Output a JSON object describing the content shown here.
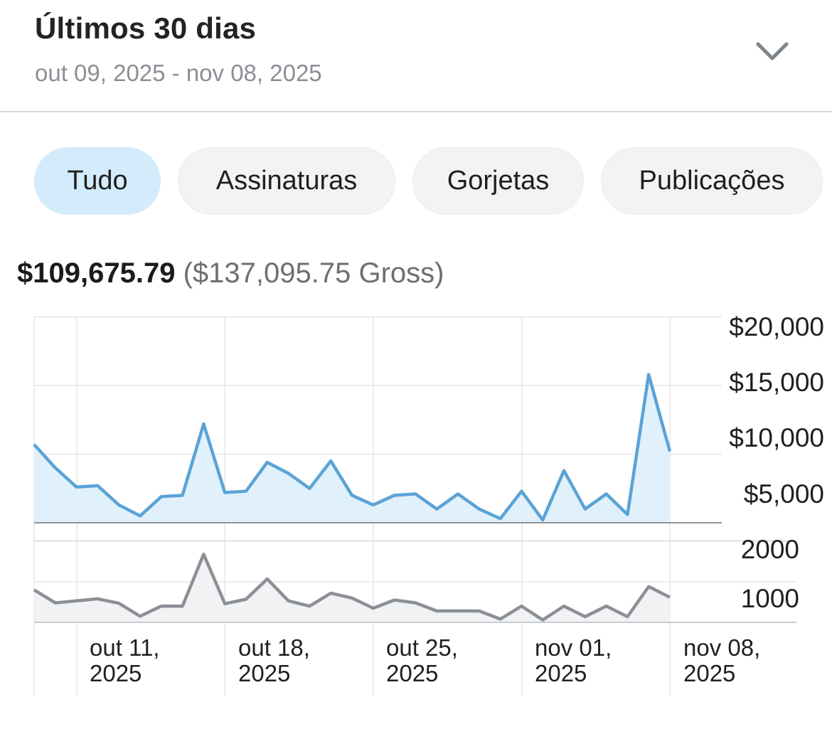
{
  "header": {
    "title": "Últimos 30 dias",
    "range": "out 09, 2025 - nov 08, 2025",
    "expand_icon": "chevron-down-icon"
  },
  "tabs": [
    {
      "label": "Tudo",
      "active": true
    },
    {
      "label": "Assinaturas",
      "active": false
    },
    {
      "label": "Gorjetas",
      "active": false
    },
    {
      "label": "Publicações",
      "active": false
    }
  ],
  "totals": {
    "net": "$109,675.79",
    "gross": "($137,095.75 Gross)"
  },
  "colors": {
    "earnings_line": "#5ba3d6",
    "earnings_fill": "#e1f1fb",
    "count_line": "#8c9096",
    "count_fill": "#f1f2f4",
    "active_tab": "#d3ebfb",
    "grid": "#e3e5e8"
  },
  "chart_data": [
    {
      "type": "area",
      "title": "",
      "x": [
        "2025-10-09",
        "2025-10-10",
        "2025-10-11",
        "2025-10-12",
        "2025-10-13",
        "2025-10-14",
        "2025-10-15",
        "2025-10-16",
        "2025-10-17",
        "2025-10-18",
        "2025-10-19",
        "2025-10-20",
        "2025-10-21",
        "2025-10-22",
        "2025-10-23",
        "2025-10-24",
        "2025-10-25",
        "2025-10-26",
        "2025-10-27",
        "2025-10-28",
        "2025-10-29",
        "2025-10-30",
        "2025-10-31",
        "2025-11-01",
        "2025-11-02",
        "2025-11-03",
        "2025-11-04",
        "2025-11-05",
        "2025-11-06",
        "2025-11-07",
        "2025-11-08"
      ],
      "series": [
        {
          "values": [
            5700,
            4000,
            2600,
            2700,
            1300,
            500,
            1900,
            2000,
            7200,
            2200,
            2300,
            4400,
            3600,
            2500,
            4500,
            2000,
            1300,
            2000,
            2100,
            1000,
            2100,
            1000,
            300,
            2300,
            200,
            3800,
            1000,
            2100,
            600,
            10800,
            5200
          ]
        }
      ],
      "y_ticks": [
        "$5,000",
        "$10,000",
        "$15,000",
        "$20,000"
      ],
      "ylim": [
        0,
        15000
      ],
      "y_axis_position": "right",
      "grid": true
    },
    {
      "type": "area",
      "title": "",
      "x": [
        "2025-10-09",
        "2025-10-10",
        "2025-10-11",
        "2025-10-12",
        "2025-10-13",
        "2025-10-14",
        "2025-10-15",
        "2025-10-16",
        "2025-10-17",
        "2025-10-18",
        "2025-10-19",
        "2025-10-20",
        "2025-10-21",
        "2025-10-22",
        "2025-10-23",
        "2025-10-24",
        "2025-10-25",
        "2025-10-26",
        "2025-10-27",
        "2025-10-28",
        "2025-10-29",
        "2025-10-30",
        "2025-10-31",
        "2025-11-01",
        "2025-11-02",
        "2025-11-03",
        "2025-11-04",
        "2025-11-05",
        "2025-11-06",
        "2025-11-07",
        "2025-11-08"
      ],
      "series": [
        {
          "values": [
            800,
            480,
            530,
            580,
            470,
            150,
            400,
            400,
            1680,
            460,
            570,
            1070,
            530,
            400,
            720,
            600,
            350,
            550,
            480,
            280,
            280,
            280,
            80,
            400,
            60,
            400,
            140,
            400,
            140,
            880,
            620
          ]
        }
      ],
      "y_ticks": [
        "1000",
        "2000"
      ],
      "ylim": [
        0,
        2000
      ],
      "y_axis_position": "right",
      "grid": true
    }
  ],
  "x_tick_labels": [
    [
      "out 11,",
      "2025"
    ],
    [
      "out 18,",
      "2025"
    ],
    [
      "out 25,",
      "2025"
    ],
    [
      "nov 01,",
      "2025"
    ],
    [
      "nov 08,",
      "2025"
    ]
  ]
}
